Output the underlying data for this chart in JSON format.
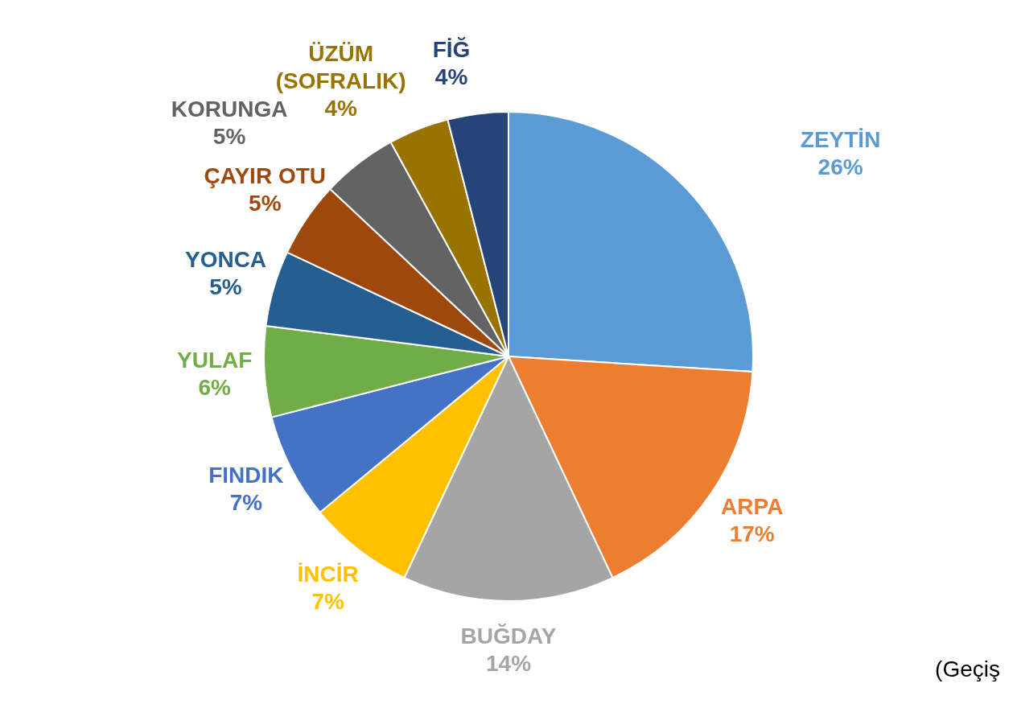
{
  "chart_data": {
    "type": "pie",
    "categories": [
      "ZEYTİN",
      "ARPA",
      "BUĞDAY",
      "İNCİR",
      "FINDIK",
      "YULAF",
      "YONCA",
      "ÇAYIR OTU",
      "KORUNGA",
      "ÜZÜM (SOFRALIK)",
      "FİĞ"
    ],
    "values": [
      26,
      17,
      14,
      7,
      7,
      6,
      5,
      5,
      5,
      4,
      4
    ],
    "colors": [
      "#5b9bd5",
      "#ed7d31",
      "#a5a5a5",
      "#ffc000",
      "#4472c4",
      "#70ad47",
      "#255e91",
      "#9e480e",
      "#636363",
      "#997300",
      "#264478"
    ],
    "value_labels": [
      "26%",
      "17%",
      "14%",
      "7%",
      "7%",
      "6%",
      "5%",
      "5%",
      "5%",
      "4%",
      "4%"
    ],
    "annotations": [
      "(Geçiş"
    ]
  }
}
